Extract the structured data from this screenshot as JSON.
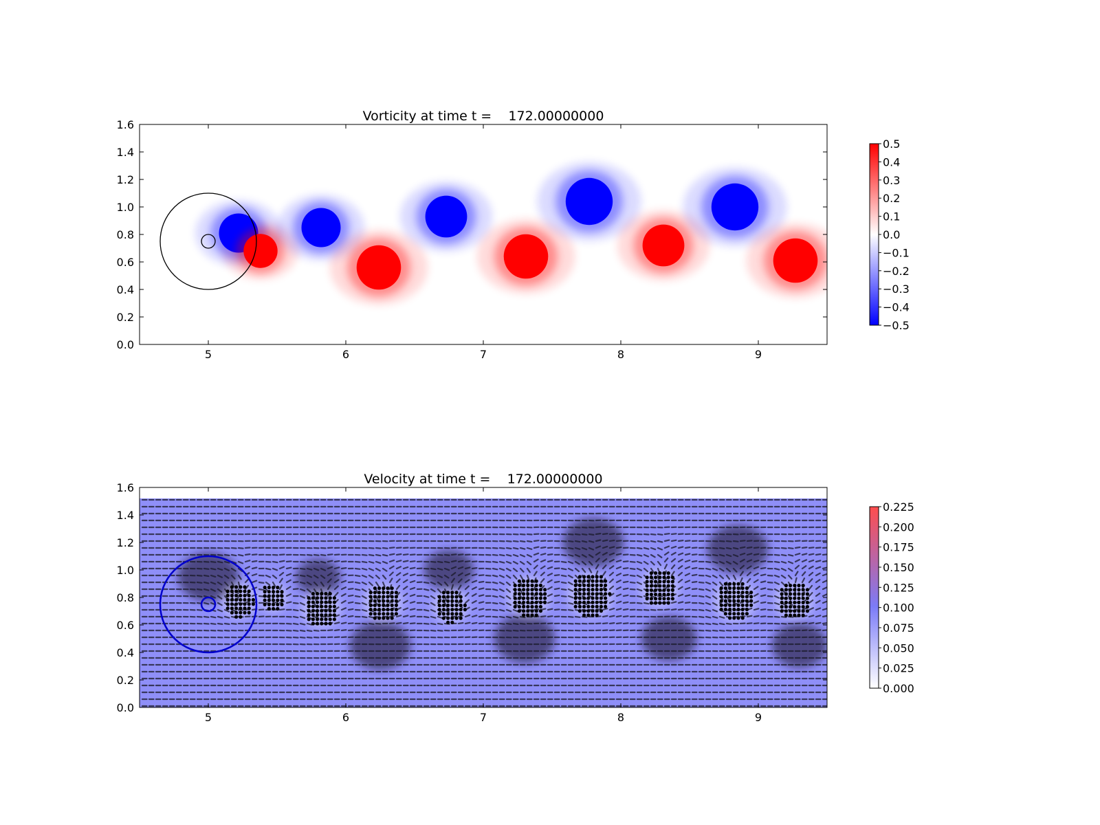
{
  "chart_data": [
    {
      "type": "heatmap",
      "title": "Vorticity at time t =    172.00000000",
      "xlabel": "",
      "ylabel": "",
      "xlim": [
        4.5,
        9.5
      ],
      "ylim": [
        0.0,
        1.6
      ],
      "xticks": [
        "5",
        "6",
        "7",
        "8",
        "9"
      ],
      "yticks": [
        "0.0",
        "0.2",
        "0.4",
        "0.6",
        "0.8",
        "1.0",
        "1.2",
        "1.4",
        "1.6"
      ],
      "colormap": "bwr",
      "colors": {
        "negative": "#0000ff",
        "zero": "#ffffff",
        "positive": "#ff0000",
        "edge": "#000000"
      },
      "colorbar": {
        "range": [
          -0.5,
          0.5
        ],
        "ticks": [
          "0.5",
          "0.4",
          "0.3",
          "0.2",
          "0.1",
          "0.0",
          "−0.1",
          "−0.2",
          "−0.3",
          "−0.4",
          "−0.5"
        ]
      },
      "vortices": [
        {
          "x": 5.22,
          "y": 0.81,
          "r": 0.15,
          "w": -0.5
        },
        {
          "x": 5.38,
          "y": 0.68,
          "r": 0.13,
          "w": 0.5
        },
        {
          "x": 5.82,
          "y": 0.85,
          "r": 0.15,
          "w": -0.5
        },
        {
          "x": 6.24,
          "y": 0.56,
          "r": 0.17,
          "w": 0.5
        },
        {
          "x": 6.73,
          "y": 0.93,
          "r": 0.16,
          "w": -0.5
        },
        {
          "x": 7.31,
          "y": 0.64,
          "r": 0.17,
          "w": 0.5
        },
        {
          "x": 7.77,
          "y": 1.04,
          "r": 0.18,
          "w": -0.5
        },
        {
          "x": 8.31,
          "y": 0.72,
          "r": 0.16,
          "w": 0.5
        },
        {
          "x": 8.83,
          "y": 1.0,
          "r": 0.18,
          "w": -0.5
        },
        {
          "x": 9.27,
          "y": 0.61,
          "r": 0.17,
          "w": 0.5
        }
      ],
      "circles": [
        {
          "x": 5.0,
          "y": 0.75,
          "r": 0.35
        },
        {
          "x": 5.0,
          "y": 0.75,
          "r": 0.05
        }
      ]
    },
    {
      "type": "quiver",
      "title": "Velocity at time t =    172.00000000",
      "xlabel": "",
      "ylabel": "",
      "xlim": [
        4.5,
        9.5
      ],
      "ylim": [
        0.0,
        1.6
      ],
      "xticks": [
        "5",
        "6",
        "7",
        "8",
        "9"
      ],
      "yticks": [
        "0.0",
        "0.2",
        "0.4",
        "0.6",
        "0.8",
        "1.0",
        "1.2",
        "1.4",
        "1.6"
      ],
      "field_top": 1.52,
      "colors": {
        "low": "#ffffff",
        "mid": "#7b7bf7",
        "high": "#ff4d4d",
        "arrow": "#1a1a28",
        "marker": "#000000",
        "circle": "#0000cc"
      },
      "colorbar": {
        "range": [
          0.0,
          0.225
        ],
        "ticks": [
          "0.225",
          "0.200",
          "0.175",
          "0.150",
          "0.125",
          "0.100",
          "0.075",
          "0.050",
          "0.025",
          "0.000"
        ]
      },
      "circles": [
        {
          "x": 5.0,
          "y": 0.75,
          "r": 0.35
        },
        {
          "x": 5.0,
          "y": 0.75,
          "r": 0.05
        }
      ],
      "marker_clusters": [
        {
          "x": 5.22,
          "y": 0.78,
          "r": 0.11
        },
        {
          "x": 5.47,
          "y": 0.8,
          "r": 0.09
        },
        {
          "x": 5.82,
          "y": 0.72,
          "r": 0.12
        },
        {
          "x": 6.27,
          "y": 0.76,
          "r": 0.12
        },
        {
          "x": 6.76,
          "y": 0.74,
          "r": 0.11
        },
        {
          "x": 7.33,
          "y": 0.8,
          "r": 0.13
        },
        {
          "x": 7.78,
          "y": 0.82,
          "r": 0.14
        },
        {
          "x": 8.28,
          "y": 0.87,
          "r": 0.12
        },
        {
          "x": 8.83,
          "y": 0.78,
          "r": 0.13
        },
        {
          "x": 9.26,
          "y": 0.78,
          "r": 0.12
        }
      ],
      "dark_regions": [
        {
          "x": 5.0,
          "y": 0.95,
          "r": 0.22
        },
        {
          "x": 5.8,
          "y": 0.95,
          "r": 0.16
        },
        {
          "x": 6.25,
          "y": 0.45,
          "r": 0.22
        },
        {
          "x": 6.75,
          "y": 1.0,
          "r": 0.18
        },
        {
          "x": 7.3,
          "y": 0.5,
          "r": 0.22
        },
        {
          "x": 7.8,
          "y": 1.2,
          "r": 0.22
        },
        {
          "x": 8.35,
          "y": 0.5,
          "r": 0.2
        },
        {
          "x": 8.85,
          "y": 1.15,
          "r": 0.22
        },
        {
          "x": 9.3,
          "y": 0.45,
          "r": 0.2
        }
      ]
    }
  ]
}
